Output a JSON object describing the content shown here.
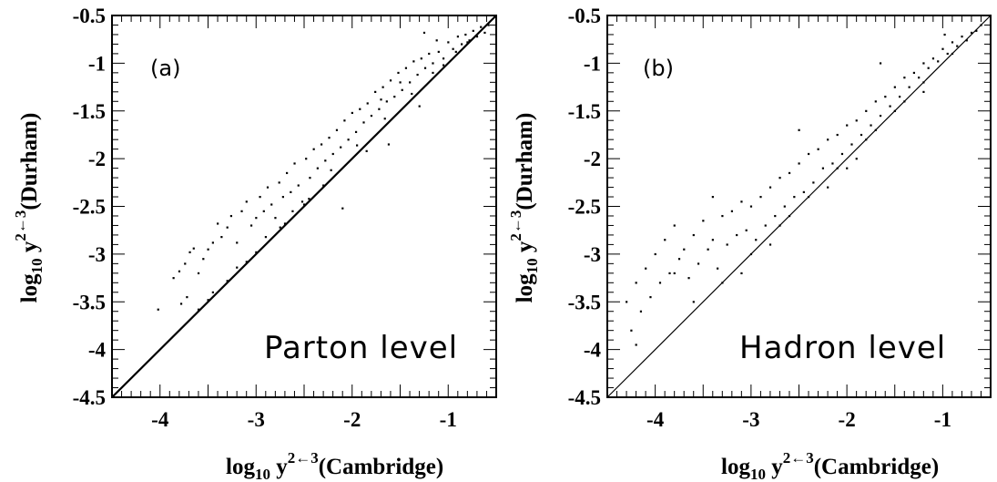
{
  "figure": {
    "panels": [
      {
        "tag": "(a)",
        "label": "Parton level"
      },
      {
        "tag": "(b)",
        "label": "Hadron level"
      }
    ],
    "xlabel": {
      "main": "log",
      "sub": "10",
      "var": " y",
      "sup": "2←3",
      "tail": "(Cambridge)"
    },
    "ylabel": {
      "main": "log",
      "sub": "10",
      "var": " y",
      "sup": "2←3",
      "tail": "(Durham)"
    }
  },
  "chart_data": [
    {
      "type": "scatter",
      "panel_tag": "(a)",
      "annotation": "Parton level",
      "xlabel": "log10 y^{2←3}(Cambridge)",
      "ylabel": "log10 y^{2←3}(Durham)",
      "xlim": [
        -4.5,
        -0.5
      ],
      "ylim": [
        -4.5,
        -0.5
      ],
      "x_ticks": [
        -4,
        -3,
        -2,
        -1
      ],
      "x_tick_labels": [
        "-4",
        "-3",
        "-2",
        "-1"
      ],
      "y_ticks": [
        -4.5,
        -4,
        -3.5,
        -3,
        -2.5,
        -2,
        -1.5,
        -1,
        -0.5
      ],
      "y_tick_labels": [
        "-4.5",
        "-4",
        "-3.5",
        "-3",
        "-2.5",
        "-2",
        "-1.5",
        "-1",
        "-0.5"
      ],
      "reference_line": {
        "from": [
          -4.5,
          -4.5
        ],
        "to": [
          -0.5,
          -0.5
        ]
      },
      "points": [
        [
          -4.02,
          -3.58
        ],
        [
          -3.78,
          -3.52
        ],
        [
          -3.72,
          -3.45
        ],
        [
          -3.86,
          -3.25
        ],
        [
          -3.8,
          -3.18
        ],
        [
          -3.74,
          -3.1
        ],
        [
          -3.69,
          -2.98
        ],
        [
          -3.65,
          -2.94
        ],
        [
          -3.6,
          -3.2
        ],
        [
          -3.55,
          -3.05
        ],
        [
          -3.5,
          -2.95
        ],
        [
          -3.45,
          -2.88
        ],
        [
          -3.4,
          -2.68
        ],
        [
          -3.36,
          -2.82
        ],
        [
          -3.3,
          -2.72
        ],
        [
          -3.26,
          -2.6
        ],
        [
          -3.2,
          -2.88
        ],
        [
          -3.15,
          -2.55
        ],
        [
          -3.1,
          -2.45
        ],
        [
          -3.05,
          -2.7
        ],
        [
          -3.0,
          -2.62
        ],
        [
          -2.96,
          -2.4
        ],
        [
          -2.92,
          -2.55
        ],
        [
          -2.88,
          -2.3
        ],
        [
          -2.84,
          -2.48
        ],
        [
          -2.8,
          -2.62
        ],
        [
          -2.76,
          -2.25
        ],
        [
          -2.72,
          -2.4
        ],
        [
          -2.68,
          -2.15
        ],
        [
          -2.64,
          -2.35
        ],
        [
          -2.6,
          -2.05
        ],
        [
          -2.56,
          -2.28
        ],
        [
          -2.52,
          -2.45
        ],
        [
          -2.48,
          -2.0
        ],
        [
          -2.44,
          -2.2
        ],
        [
          -2.4,
          -1.9
        ],
        [
          -2.36,
          -2.1
        ],
        [
          -2.32,
          -1.85
        ],
        [
          -2.28,
          -2.02
        ],
        [
          -2.24,
          -1.78
        ],
        [
          -2.2,
          -1.95
        ],
        [
          -2.16,
          -1.7
        ],
        [
          -2.12,
          -1.88
        ],
        [
          -2.08,
          -1.6
        ],
        [
          -2.04,
          -1.8
        ],
        [
          -2.0,
          -1.52
        ],
        [
          -1.96,
          -1.72
        ],
        [
          -1.92,
          -1.48
        ],
        [
          -1.88,
          -1.62
        ],
        [
          -1.84,
          -1.42
        ],
        [
          -1.8,
          -1.55
        ],
        [
          -1.76,
          -1.3
        ],
        [
          -1.72,
          -1.48
        ],
        [
          -1.68,
          -1.25
        ],
        [
          -1.64,
          -1.4
        ],
        [
          -1.6,
          -1.18
        ],
        [
          -1.56,
          -1.35
        ],
        [
          -1.52,
          -1.1
        ],
        [
          -1.48,
          -1.28
        ],
        [
          -1.44,
          -1.05
        ],
        [
          -1.4,
          -1.2
        ],
        [
          -1.36,
          -0.98
        ],
        [
          -1.32,
          -1.12
        ],
        [
          -1.28,
          -0.95
        ],
        [
          -1.24,
          -1.05
        ],
        [
          -1.2,
          -0.9
        ],
        [
          -1.16,
          -1.0
        ],
        [
          -1.1,
          -0.88
        ],
        [
          -1.05,
          -0.95
        ],
        [
          -1.0,
          -0.78
        ],
        [
          -0.95,
          -0.85
        ],
        [
          -0.9,
          -0.72
        ],
        [
          -0.86,
          -0.8
        ],
        [
          -0.82,
          -0.7
        ],
        [
          -0.78,
          -0.76
        ],
        [
          -0.74,
          -0.66
        ],
        [
          -0.7,
          -0.72
        ],
        [
          -0.66,
          -0.62
        ],
        [
          -0.62,
          -0.68
        ],
        [
          -0.58,
          -0.6
        ],
        [
          -1.25,
          -0.68
        ],
        [
          -1.12,
          -0.76
        ],
        [
          -1.5,
          -1.2
        ],
        [
          -1.7,
          -1.38
        ],
        [
          -2.3,
          -2.28
        ],
        [
          -2.5,
          -2.48
        ],
        [
          -2.7,
          -2.68
        ],
        [
          -3.0,
          -2.98
        ],
        [
          -3.3,
          -3.28
        ],
        [
          -3.6,
          -3.58
        ],
        [
          -2.9,
          -2.82
        ],
        [
          -2.62,
          -2.55
        ],
        [
          -2.22,
          -2.12
        ],
        [
          -1.95,
          -1.86
        ],
        [
          -1.66,
          -1.58
        ],
        [
          -1.38,
          -1.32
        ],
        [
          -1.16,
          -1.1
        ],
        [
          -0.92,
          -0.88
        ],
        [
          -3.2,
          -3.14
        ],
        [
          -3.45,
          -3.4
        ],
        [
          -2.1,
          -2.52
        ],
        [
          -1.85,
          -1.92
        ],
        [
          -1.62,
          -1.85
        ],
        [
          -1.3,
          -1.45
        ],
        [
          -2.45,
          -2.42
        ],
        [
          -2.75,
          -2.72
        ],
        [
          -3.1,
          -3.08
        ],
        [
          -3.5,
          -3.48
        ],
        [
          -1.05,
          -1.02
        ],
        [
          -0.8,
          -0.78
        ]
      ]
    },
    {
      "type": "scatter",
      "panel_tag": "(b)",
      "annotation": "Hadron level",
      "xlabel": "log10 y^{2←3}(Cambridge)",
      "ylabel": "log10 y^{2←3}(Durham)",
      "xlim": [
        -4.5,
        -0.5
      ],
      "ylim": [
        -4.5,
        -0.5
      ],
      "x_ticks": [
        -4,
        -3,
        -2,
        -1
      ],
      "x_tick_labels": [
        "-4",
        "-3",
        "-2",
        "-1"
      ],
      "y_ticks": [
        -4.5,
        -4,
        -3.5,
        -3,
        -2.5,
        -2,
        -1.5,
        -1,
        -0.5
      ],
      "y_tick_labels": [
        "-4.5",
        "-4",
        "-3.5",
        "-3",
        "-2.5",
        "-2",
        "-1.5",
        "-1",
        "-0.5"
      ],
      "reference_line": {
        "from": [
          -4.5,
          -4.5
        ],
        "to": [
          -0.5,
          -0.5
        ]
      },
      "points": [
        [
          -4.3,
          -3.5
        ],
        [
          -4.25,
          -3.8
        ],
        [
          -4.2,
          -3.3
        ],
        [
          -4.15,
          -3.6
        ],
        [
          -4.1,
          -3.15
        ],
        [
          -4.05,
          -3.45
        ],
        [
          -4.0,
          -3.0
        ],
        [
          -3.95,
          -3.3
        ],
        [
          -3.9,
          -2.85
        ],
        [
          -3.85,
          -3.2
        ],
        [
          -3.8,
          -2.7
        ],
        [
          -3.75,
          -3.05
        ],
        [
          -3.7,
          -2.95
        ],
        [
          -3.65,
          -3.25
        ],
        [
          -3.6,
          -2.8
        ],
        [
          -3.55,
          -3.1
        ],
        [
          -3.5,
          -2.65
        ],
        [
          -3.45,
          -2.95
        ],
        [
          -3.4,
          -2.85
        ],
        [
          -3.35,
          -3.15
        ],
        [
          -3.3,
          -2.6
        ],
        [
          -3.25,
          -2.9
        ],
        [
          -3.2,
          -2.55
        ],
        [
          -3.15,
          -2.8
        ],
        [
          -3.1,
          -2.45
        ],
        [
          -3.05,
          -2.75
        ],
        [
          -3.0,
          -2.5
        ],
        [
          -2.95,
          -2.85
        ],
        [
          -2.9,
          -2.4
        ],
        [
          -2.85,
          -2.7
        ],
        [
          -2.8,
          -2.3
        ],
        [
          -2.75,
          -2.6
        ],
        [
          -2.7,
          -2.2
        ],
        [
          -2.65,
          -2.5
        ],
        [
          -2.6,
          -2.15
        ],
        [
          -2.55,
          -2.4
        ],
        [
          -2.5,
          -2.05
        ],
        [
          -2.45,
          -2.35
        ],
        [
          -2.4,
          -1.95
        ],
        [
          -2.35,
          -2.25
        ],
        [
          -2.3,
          -1.9
        ],
        [
          -2.25,
          -2.1
        ],
        [
          -2.2,
          -1.8
        ],
        [
          -2.15,
          -2.05
        ],
        [
          -2.1,
          -1.75
        ],
        [
          -2.05,
          -1.95
        ],
        [
          -2.0,
          -1.65
        ],
        [
          -1.95,
          -1.85
        ],
        [
          -1.9,
          -1.6
        ],
        [
          -1.85,
          -1.75
        ],
        [
          -1.8,
          -1.5
        ],
        [
          -1.75,
          -1.65
        ],
        [
          -1.7,
          -1.4
        ],
        [
          -1.65,
          -1.55
        ],
        [
          -1.6,
          -1.35
        ],
        [
          -1.55,
          -1.45
        ],
        [
          -1.5,
          -1.25
        ],
        [
          -1.45,
          -1.35
        ],
        [
          -1.4,
          -1.15
        ],
        [
          -1.35,
          -1.25
        ],
        [
          -1.3,
          -1.1
        ],
        [
          -1.25,
          -1.15
        ],
        [
          -1.2,
          -1.0
        ],
        [
          -1.15,
          -1.05
        ],
        [
          -1.1,
          -0.95
        ],
        [
          -1.05,
          -0.98
        ],
        [
          -1.0,
          -0.85
        ],
        [
          -0.95,
          -0.9
        ],
        [
          -0.9,
          -0.78
        ],
        [
          -0.85,
          -0.82
        ],
        [
          -0.8,
          -0.72
        ],
        [
          -0.75,
          -0.76
        ],
        [
          -0.7,
          -0.68
        ],
        [
          -0.65,
          -0.66
        ],
        [
          -0.6,
          -0.6
        ],
        [
          -0.98,
          -0.7
        ],
        [
          -1.65,
          -1.0
        ],
        [
          -1.2,
          -1.3
        ],
        [
          -2.5,
          -1.7
        ],
        [
          -2.0,
          -2.1
        ],
        [
          -3.6,
          -3.5
        ],
        [
          -3.3,
          -3.3
        ],
        [
          -3.0,
          -3.0
        ],
        [
          -2.7,
          -2.7
        ],
        [
          -2.4,
          -2.4
        ],
        [
          -2.1,
          -2.1
        ],
        [
          -1.8,
          -1.8
        ],
        [
          -1.5,
          -1.5
        ],
        [
          -1.2,
          -1.2
        ],
        [
          -0.9,
          -0.9
        ],
        [
          -3.8,
          -3.2
        ],
        [
          -3.4,
          -2.4
        ],
        [
          -3.1,
          -3.2
        ],
        [
          -2.8,
          -2.9
        ],
        [
          -2.6,
          -2.6
        ],
        [
          -2.2,
          -2.3
        ],
        [
          -1.9,
          -2.0
        ],
        [
          -1.7,
          -1.7
        ],
        [
          -1.4,
          -1.4
        ],
        [
          -4.2,
          -3.95
        ]
      ]
    }
  ]
}
